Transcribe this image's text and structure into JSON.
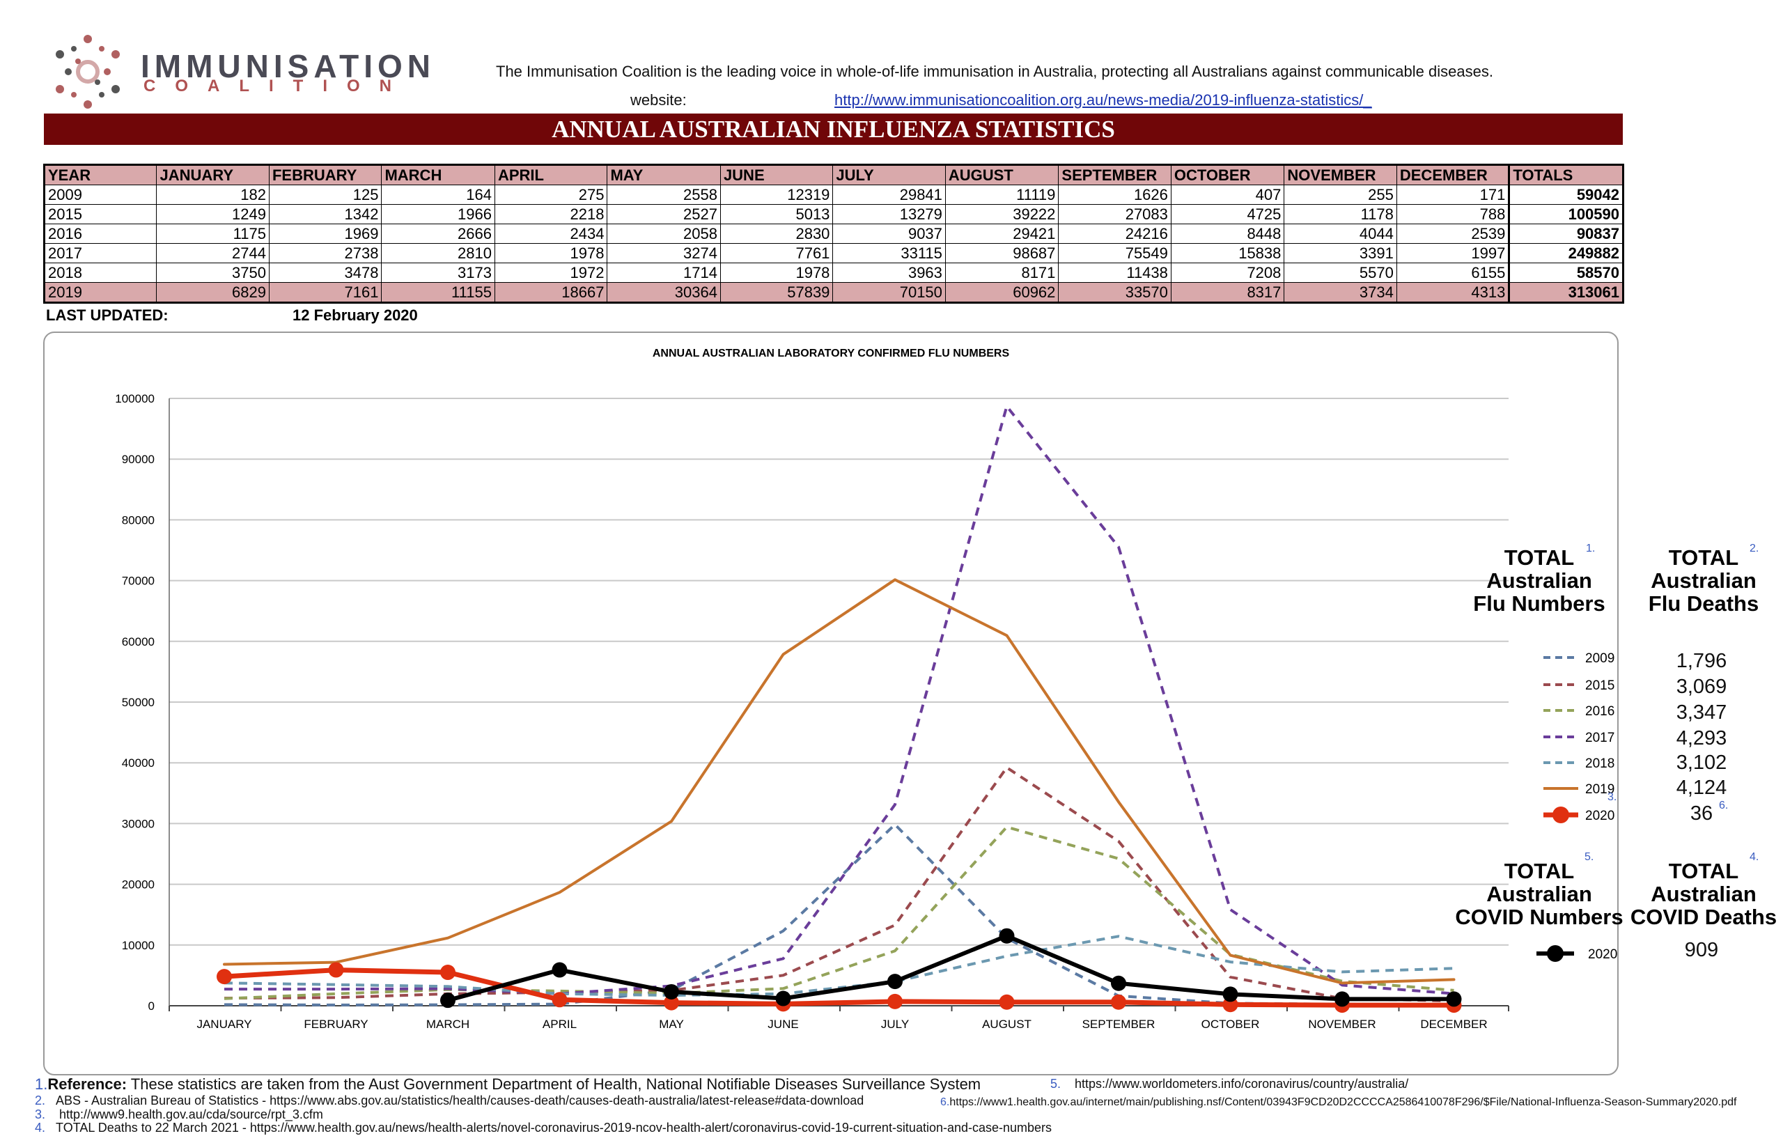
{
  "logo": {
    "line1": "IMMUNISATION",
    "line2": "COALITION"
  },
  "header": {
    "tagline": "The Immunisation Coalition is the leading voice in whole-of-life immunisation in Australia, protecting all Australians against communicable diseases.",
    "website_label": "website:",
    "website_url": "http://www.immunisationcoalition.org.au/news-media/2019-influenza-statistics/_",
    "banner_title": "ANNUAL AUSTRALIAN INFLUENZA STATISTICS"
  },
  "table": {
    "headers": [
      "YEAR",
      "JANUARY",
      "FEBRUARY",
      "MARCH",
      "APRIL",
      "MAY",
      "JUNE",
      "JULY",
      "AUGUST",
      "SEPTEMBER",
      "OCTOBER",
      "NOVEMBER",
      "DECEMBER",
      "TOTALS"
    ],
    "rows": [
      [
        "2009",
        "182",
        "125",
        "164",
        "275",
        "2558",
        "12319",
        "29841",
        "11119",
        "1626",
        "407",
        "255",
        "171",
        "59042"
      ],
      [
        "2015",
        "1249",
        "1342",
        "1966",
        "2218",
        "2527",
        "5013",
        "13279",
        "39222",
        "27083",
        "4725",
        "1178",
        "788",
        "100590"
      ],
      [
        "2016",
        "1175",
        "1969",
        "2666",
        "2434",
        "2058",
        "2830",
        "9037",
        "29421",
        "24216",
        "8448",
        "4044",
        "2539",
        "90837"
      ],
      [
        "2017",
        "2744",
        "2738",
        "2810",
        "1978",
        "3274",
        "7761",
        "33115",
        "98687",
        "75549",
        "15838",
        "3391",
        "1997",
        "249882"
      ],
      [
        "2018",
        "3750",
        "3478",
        "3173",
        "1972",
        "1714",
        "1978",
        "3963",
        "8171",
        "11438",
        "7208",
        "5570",
        "6155",
        "58570"
      ],
      [
        "2019",
        "6829",
        "7161",
        "11155",
        "18667",
        "30364",
        "57839",
        "70150",
        "60962",
        "33570",
        "8317",
        "3734",
        "4313",
        "313061"
      ]
    ],
    "highlight_row": 5,
    "highlight_color": "#d9a9ab"
  },
  "updated": {
    "label": "LAST UPDATED:",
    "value": "12 February  2020"
  },
  "chart_data": {
    "type": "line",
    "title": "ANNUAL AUSTRALIAN LABORATORY CONFIRMED FLU NUMBERS",
    "xlabel": "",
    "ylabel": "",
    "categories": [
      "JANUARY",
      "FEBRUARY",
      "MARCH",
      "APRIL",
      "MAY",
      "JUNE",
      "JULY",
      "AUGUST",
      "SEPTEMBER",
      "OCTOBER",
      "NOVEMBER",
      "DECEMBER"
    ],
    "ylim": [
      0,
      100000
    ],
    "yticks": [
      0,
      10000,
      20000,
      30000,
      40000,
      50000,
      60000,
      70000,
      80000,
      90000,
      100000
    ],
    "grid": true,
    "legend_position": "right",
    "series": [
      {
        "name": "2009",
        "style": "dashed",
        "color": "#5b7aa3",
        "values": [
          182,
          125,
          164,
          275,
          2558,
          12319,
          29841,
          11119,
          1626,
          407,
          255,
          171
        ]
      },
      {
        "name": "2015",
        "style": "dashed",
        "color": "#9b4a4e",
        "values": [
          1249,
          1342,
          1966,
          2218,
          2527,
          5013,
          13279,
          39222,
          27083,
          4725,
          1178,
          788
        ]
      },
      {
        "name": "2016",
        "style": "dashed",
        "color": "#94a35a",
        "values": [
          1175,
          1969,
          2666,
          2434,
          2058,
          2830,
          9037,
          29421,
          24216,
          8448,
          4044,
          2539
        ]
      },
      {
        "name": "2017",
        "style": "dashed",
        "color": "#6a3d9a",
        "values": [
          2744,
          2738,
          2810,
          1978,
          3274,
          7761,
          33115,
          98687,
          75549,
          15838,
          3391,
          1997
        ]
      },
      {
        "name": "2018",
        "style": "dashed",
        "color": "#6b98b0",
        "values": [
          3750,
          3478,
          3173,
          1972,
          1714,
          1978,
          3963,
          8171,
          11438,
          7208,
          5570,
          6155
        ]
      },
      {
        "name": "2019",
        "style": "solid",
        "color": "#c8742c",
        "values": [
          6829,
          7161,
          11155,
          18667,
          30364,
          57839,
          70150,
          60962,
          33570,
          8317,
          3734,
          4313
        ]
      },
      {
        "name": "2020",
        "style": "solid-markers",
        "color": "#e03010",
        "values": [
          4800,
          5900,
          5500,
          1000,
          500,
          300,
          700,
          600,
          600,
          200,
          100,
          100
        ]
      },
      {
        "name": "2020",
        "style": "solid-markers",
        "color": "#000000",
        "group": "covid",
        "values": [
          null,
          null,
          900,
          5900,
          2300,
          1200,
          4000,
          11500,
          3700,
          1900,
          1100,
          1100
        ]
      }
    ]
  },
  "panels": {
    "flu_numbers_title": [
      "TOTAL",
      "Australian",
      "Flu Numbers"
    ],
    "flu_numbers_fn": "1.",
    "flu_deaths_title": [
      "TOTAL",
      "Australian",
      "Flu Deaths"
    ],
    "flu_deaths_fn": "2.",
    "flu_legend": [
      {
        "year": "2009",
        "deaths": "1,796"
      },
      {
        "year": "2015",
        "deaths": "3,069"
      },
      {
        "year": "2016",
        "deaths": "3,347"
      },
      {
        "year": "2017",
        "deaths": "4,293"
      },
      {
        "year": "2018",
        "deaths": "3,102"
      },
      {
        "year": "2019",
        "deaths": "4,124"
      },
      {
        "year": "2020",
        "deaths": "36"
      }
    ],
    "legend_2020_fn": "3.",
    "deaths_2020_fn": "6.",
    "covid_numbers_title": [
      "TOTAL",
      "Australian",
      "COVID Numbers"
    ],
    "covid_numbers_fn": "5.",
    "covid_deaths_title": [
      "TOTAL",
      "Australian",
      "COVID Deaths"
    ],
    "covid_deaths_fn": "4.",
    "covid_legend": {
      "year": "2020",
      "deaths": "909"
    }
  },
  "references": {
    "r1_num": "1.",
    "r1_bold": "Reference:",
    "r1_text": " These statistics are taken from the Aust Government Department of Health, National Notifiable Diseases Surveillance System",
    "r2_num": "2.",
    "r2_text": "ABS - Australian Bureau of Statistics - https://www.abs.gov.au/statistics/health/causes-death/causes-death-australia/latest-release#data-download",
    "r3_num": "3.",
    "r3_text": "http://www9.health.gov.au/cda/source/rpt_3.cfm",
    "r4_num": "4.",
    "r4_text": "TOTAL Deaths to 22 March 2021 - https://www.health.gov.au/news/health-alerts/novel-coronavirus-2019-ncov-health-alert/coronavirus-covid-19-current-situation-and-case-numbers",
    "r5_num": "5.",
    "r5_text": "https://www.worldometers.info/coronavirus/country/australia/",
    "r6_num": "6.",
    "r6_text": "https://www1.health.gov.au/internet/main/publishing.nsf/Content/03943F9CD20D2CCCCA2586410078F296/$File/National-Influenza-Season-Summary2020.pdf"
  }
}
